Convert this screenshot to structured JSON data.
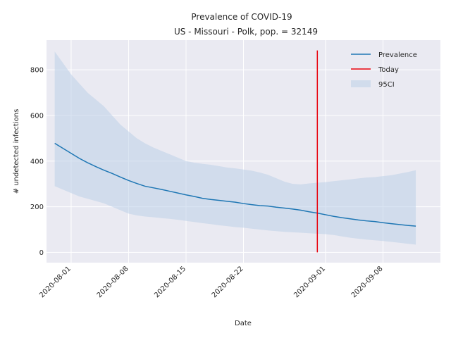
{
  "chart_data": {
    "type": "line",
    "title": "Prevalence of COVID-19",
    "subtitle": "US - Missouri - Polk, pop. = 32149",
    "xlabel": "Date",
    "ylabel": "# undetected infections",
    "x_ticks": [
      "2020-08-01",
      "2020-08-08",
      "2020-08-15",
      "2020-08-22",
      "2020-09-01",
      "2020-09-08"
    ],
    "y_ticks": [
      0,
      200,
      400,
      600,
      800
    ],
    "xlim": [
      "2020-07-29",
      "2020-09-15"
    ],
    "ylim": [
      -45,
      930
    ],
    "grid": true,
    "legend_position": "top-right",
    "legend": [
      "Prevalence",
      "Today",
      "95CI"
    ],
    "today": "2020-08-31",
    "today_range": [
      0,
      885
    ],
    "colors": {
      "prevalence": "#1f77b4",
      "today": "#e8000b",
      "ci": "#bcd0e8",
      "background": "#eaeaf2"
    },
    "x": [
      "2020-07-30",
      "2020-07-31",
      "2020-08-01",
      "2020-08-02",
      "2020-08-03",
      "2020-08-04",
      "2020-08-05",
      "2020-08-06",
      "2020-08-07",
      "2020-08-08",
      "2020-08-09",
      "2020-08-10",
      "2020-08-11",
      "2020-08-12",
      "2020-08-13",
      "2020-08-14",
      "2020-08-15",
      "2020-08-16",
      "2020-08-17",
      "2020-08-18",
      "2020-08-19",
      "2020-08-20",
      "2020-08-21",
      "2020-08-22",
      "2020-08-23",
      "2020-08-24",
      "2020-08-25",
      "2020-08-26",
      "2020-08-27",
      "2020-08-28",
      "2020-08-29",
      "2020-08-30",
      "2020-08-31",
      "2020-09-01",
      "2020-09-02",
      "2020-09-03",
      "2020-09-04",
      "2020-09-05",
      "2020-09-06",
      "2020-09-07",
      "2020-09-08",
      "2020-09-09",
      "2020-09-10",
      "2020-09-11",
      "2020-09-12"
    ],
    "series": [
      {
        "name": "Prevalence",
        "values": [
          478,
          456,
          434,
          412,
          393,
          376,
          360,
          346,
          330,
          315,
          302,
          290,
          283,
          276,
          268,
          260,
          252,
          245,
          237,
          232,
          228,
          224,
          220,
          214,
          209,
          205,
          203,
          198,
          194,
          190,
          185,
          178,
          172,
          165,
          158,
          152,
          147,
          142,
          138,
          135,
          130,
          126,
          122,
          118,
          115
        ]
      },
      {
        "name": "95CI",
        "lower": [
          290,
          275,
          260,
          245,
          235,
          225,
          215,
          200,
          185,
          170,
          162,
          157,
          154,
          150,
          147,
          143,
          138,
          133,
          128,
          124,
          119,
          115,
          111,
          108,
          104,
          100,
          96,
          93,
          90,
          88,
          86,
          84,
          82,
          80,
          76,
          70,
          64,
          60,
          56,
          53,
          50,
          46,
          42,
          38,
          34
        ],
        "upper": [
          880,
          830,
          780,
          740,
          700,
          670,
          640,
          600,
          560,
          530,
          500,
          478,
          460,
          445,
          430,
          415,
          400,
          393,
          388,
          384,
          378,
          372,
          368,
          363,
          358,
          350,
          340,
          325,
          310,
          300,
          298,
          302,
          305,
          308,
          312,
          316,
          320,
          324,
          328,
          330,
          334,
          338,
          345,
          352,
          360
        ]
      }
    ]
  }
}
